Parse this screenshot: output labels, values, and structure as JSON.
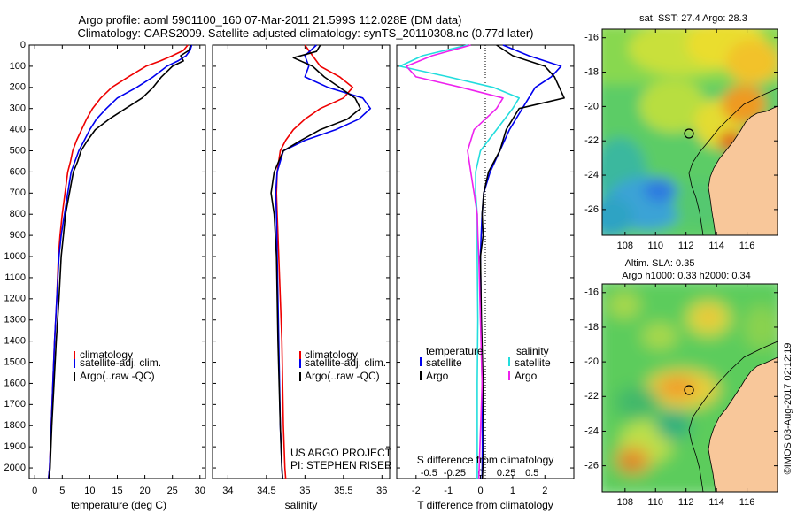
{
  "header": {
    "line1": "Argo profile: aoml 5901100_160 07-Mar-2011 21.599S 112.028E (DM data)",
    "line2": "Climatology: CARS2009. Satellite-adjusted climatology: synTS_20110308.nc (0.77d later)"
  },
  "footer": {
    "credit": "©IMOS 03-Aug-2017 02:12:19"
  },
  "colors": {
    "climatology": "#ee0000",
    "satellite": "#0000ee",
    "argo": "#000000",
    "sal_satellite": "#22dddd",
    "sal_argo": "#ee22ee",
    "land": "#f8c79a"
  },
  "chart_data": [
    {
      "type": "line",
      "id": "temperature",
      "xlabel": "temperature (deg C)",
      "xlim": [
        -1,
        31
      ],
      "xticks": [
        0,
        5,
        10,
        15,
        20,
        25,
        30
      ],
      "ylim": [
        0,
        2050
      ],
      "yticks": [
        0,
        100,
        200,
        300,
        400,
        500,
        600,
        700,
        800,
        900,
        1000,
        1100,
        1200,
        1300,
        1400,
        1500,
        1600,
        1700,
        1800,
        1900,
        2000
      ],
      "legend": [
        "climatology",
        "satellite-adj. clim.",
        "Argo(..raw -QC)"
      ],
      "series": [
        {
          "name": "climatology",
          "color": "#ee0000",
          "x": [
            27.8,
            27.0,
            25.0,
            22.8,
            20.2,
            17.0,
            14.0,
            12.0,
            10.5,
            9.4,
            8.5,
            7.6,
            6.9,
            6.5,
            6.0,
            5.5,
            5.0,
            4.6,
            4.3,
            4.0,
            3.6,
            3.3,
            3.0,
            2.7,
            2.5
          ],
          "y": [
            0,
            25,
            50,
            75,
            100,
            150,
            200,
            250,
            300,
            350,
            400,
            450,
            500,
            550,
            600,
            700,
            800,
            900,
            1000,
            1200,
            1400,
            1600,
            1800,
            2000,
            2050
          ]
        },
        {
          "name": "satellite-adj. clim.",
          "color": "#0000ee",
          "x": [
            28.5,
            28.2,
            27.5,
            26.0,
            24.0,
            21.5,
            18.5,
            15.0,
            13.0,
            11.2,
            10.0,
            9.0,
            8.0,
            7.3,
            6.6,
            6.0,
            5.4,
            4.8,
            4.4,
            4.0,
            3.6,
            3.3,
            3.0,
            2.7,
            2.5
          ],
          "y": [
            0,
            25,
            50,
            75,
            100,
            150,
            200,
            250,
            300,
            350,
            400,
            450,
            500,
            550,
            600,
            700,
            800,
            900,
            1000,
            1200,
            1400,
            1600,
            1800,
            2000,
            2050
          ]
        },
        {
          "name": "Argo(..raw -QC)",
          "color": "#000000",
          "x": [
            28.3,
            28.0,
            26.5,
            27.0,
            25.0,
            23.0,
            21.5,
            19.5,
            16.5,
            13.5,
            11.0,
            9.6,
            8.4,
            7.8,
            7.0,
            6.3,
            5.6,
            5.2,
            4.8,
            4.4,
            3.9,
            3.5,
            3.1,
            2.8,
            2.6
          ],
          "y": [
            0,
            25,
            50,
            75,
            100,
            150,
            200,
            250,
            300,
            350,
            400,
            450,
            500,
            550,
            600,
            700,
            800,
            900,
            1000,
            1200,
            1400,
            1600,
            1800,
            2000,
            2050
          ]
        }
      ]
    },
    {
      "type": "line",
      "id": "salinity",
      "xlabel": "salinity",
      "xlim": [
        33.8,
        36.1
      ],
      "xticks": [
        34,
        34.5,
        35,
        35.5,
        36
      ],
      "ylim": [
        0,
        2050
      ],
      "legend": [
        "climatology",
        "satellite-adj. clim.",
        "Argo(..raw -QC)"
      ],
      "annotation": [
        "US ARGO PROJECT",
        "PI: STEPHEN RISER"
      ],
      "series": [
        {
          "name": "climatology",
          "color": "#ee0000",
          "x": [
            35.0,
            35.1,
            35.2,
            35.45,
            35.62,
            35.5,
            35.2,
            35.0,
            34.85,
            34.75,
            34.68,
            34.64,
            34.63,
            34.64,
            34.66,
            34.7,
            34.72,
            34.74,
            34.75
          ],
          "y": [
            0,
            50,
            100,
            150,
            200,
            250,
            300,
            350,
            400,
            450,
            500,
            600,
            700,
            800,
            1000,
            1400,
            1800,
            2000,
            2050
          ]
        },
        {
          "name": "satellite-adj. clim.",
          "color": "#0000ee",
          "x": [
            35.15,
            35.0,
            35.05,
            35.0,
            35.3,
            35.75,
            35.85,
            35.7,
            35.4,
            35.0,
            34.72,
            34.64,
            34.62,
            34.63,
            34.64,
            34.66,
            34.68,
            34.7,
            34.71
          ],
          "y": [
            0,
            50,
            100,
            150,
            200,
            250,
            300,
            350,
            400,
            450,
            500,
            600,
            700,
            800,
            1000,
            1400,
            1800,
            2000,
            2050
          ]
        },
        {
          "name": "Argo(..raw -QC)",
          "color": "#000000",
          "x": [
            35.2,
            35.15,
            34.85,
            35.1,
            35.25,
            35.65,
            35.72,
            35.55,
            35.2,
            34.95,
            34.72,
            34.6,
            34.56,
            34.6,
            34.63,
            34.65,
            34.68,
            34.7,
            34.71
          ],
          "y": [
            0,
            30,
            60,
            100,
            150,
            250,
            300,
            350,
            400,
            450,
            500,
            600,
            700,
            800,
            1000,
            1400,
            1800,
            2000,
            2050
          ]
        }
      ]
    },
    {
      "type": "line",
      "id": "difference",
      "xlabel": "T difference from climatology",
      "xlabel2": "S difference from climatology",
      "xlim": [
        -2.6,
        2.9
      ],
      "xticks_T": [
        -2,
        -1,
        0,
        1,
        2
      ],
      "xticks_S": [
        "-0.5",
        "-0.25",
        "0",
        "0.25",
        "0.5"
      ],
      "ylim": [
        0,
        2050
      ],
      "legend_temperature": {
        "title": "temperature",
        "entries": [
          "satellite",
          "Argo"
        ]
      },
      "legend_salinity": {
        "title": "salinity",
        "entries": [
          "satellite",
          "Argo"
        ]
      },
      "series": [
        {
          "name": "satellite",
          "group": "temperature",
          "color": "#0000ee",
          "x": [
            0.7,
            1.5,
            2.5,
            2.2,
            1.7,
            1.3,
            0.9,
            0.6,
            0.3,
            0.1,
            0.05,
            0.02,
            0.0,
            0.02,
            0.05,
            0.06,
            0.05
          ],
          "y": [
            0,
            50,
            100,
            150,
            200,
            300,
            400,
            500,
            600,
            700,
            800,
            900,
            1000,
            1300,
            1600,
            1900,
            2050
          ]
        },
        {
          "name": "Argo",
          "group": "temperature",
          "color": "#000000",
          "x": [
            0.5,
            1.0,
            2.0,
            2.3,
            2.6,
            1.2,
            0.8,
            0.6,
            0.25,
            0.1,
            0.05,
            0.08,
            0.0,
            0.03,
            0.08,
            0.1,
            0.06
          ],
          "y": [
            0,
            50,
            100,
            150,
            250,
            300,
            400,
            500,
            600,
            700,
            800,
            900,
            1000,
            1300,
            1600,
            1900,
            2050
          ]
        },
        {
          "name": "satellite",
          "group": "salinity",
          "color": "#22dddd",
          "x": [
            -0.4,
            -1.8,
            -2.5,
            -1.0,
            0.4,
            1.2,
            1.0,
            0.5,
            0.0,
            -0.15,
            -0.15,
            -0.1,
            -0.1,
            -0.1,
            -0.08,
            -0.1,
            -0.1
          ],
          "y": [
            0,
            50,
            100,
            150,
            200,
            250,
            300,
            400,
            500,
            600,
            700,
            800,
            900,
            1000,
            1300,
            1600,
            2050
          ]
        },
        {
          "name": "Argo",
          "group": "salinity",
          "color": "#ee22ee",
          "x": [
            -0.3,
            -1.5,
            -2.3,
            -2.0,
            -0.6,
            0.7,
            0.5,
            -0.2,
            -0.4,
            -0.3,
            -0.2,
            -0.1,
            -0.08,
            -0.05,
            0.0,
            0.05,
            -0.05
          ],
          "y": [
            0,
            50,
            100,
            150,
            200,
            250,
            300,
            400,
            500,
            600,
            700,
            800,
            900,
            1000,
            1300,
            1600,
            2050
          ]
        }
      ]
    },
    {
      "type": "heatmap",
      "id": "sst_map",
      "title": "sat. SST: 27.4  Argo: 28.3",
      "xlim": [
        106.5,
        118
      ],
      "ylim": [
        -27.5,
        -15.5
      ],
      "xticks": [
        108,
        110,
        112,
        114,
        116
      ],
      "yticks": [
        -16,
        -18,
        -20,
        -22,
        -24,
        -26
      ],
      "float_position": {
        "lon": 112.028,
        "lat": -21.599
      }
    },
    {
      "type": "heatmap",
      "id": "sla_map",
      "title": "Altim. SLA: 0.35",
      "subtitle": "Argo h1000: 0.33 h2000: 0.34",
      "xlim": [
        106.5,
        118
      ],
      "ylim": [
        -27.5,
        -15.5
      ],
      "xticks": [
        108,
        110,
        112,
        114,
        116
      ],
      "yticks": [
        -16,
        -18,
        -20,
        -22,
        -24,
        -26
      ],
      "float_position": {
        "lon": 112.028,
        "lat": -21.599
      }
    }
  ]
}
